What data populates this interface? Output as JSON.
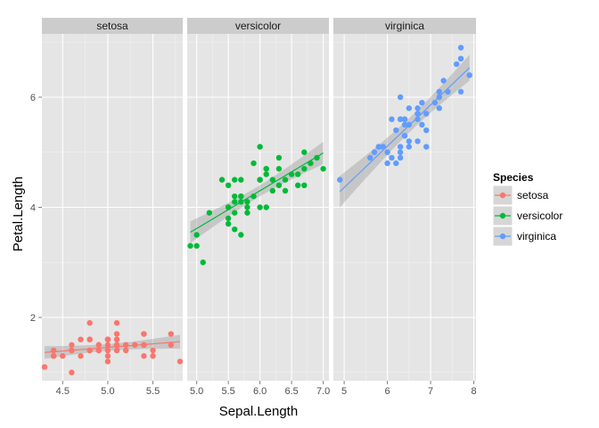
{
  "chart_data": {
    "type": "scatter",
    "xlabel": "Sepal.Length",
    "ylabel": "Petal.Length",
    "ylim": [
      0.85,
      7.15
    ],
    "y_ticks": [
      2,
      4,
      6
    ],
    "grid": true,
    "legend": {
      "title": "Species",
      "position": "right"
    },
    "panels": [
      {
        "name": "setosa",
        "color": "#F8766D",
        "xlim": [
          4.27,
          5.83
        ],
        "x_ticks": [
          4.5,
          5.0,
          5.5
        ],
        "x_tick_labels": [
          "4.5",
          "5.0",
          "5.5"
        ],
        "fit": {
          "intercept": 0.8,
          "slope": 0.131,
          "band": 0.12
        },
        "points": [
          [
            5.1,
            1.4
          ],
          [
            4.9,
            1.4
          ],
          [
            4.7,
            1.3
          ],
          [
            4.6,
            1.5
          ],
          [
            5.0,
            1.4
          ],
          [
            5.4,
            1.7
          ],
          [
            4.6,
            1.4
          ],
          [
            5.0,
            1.5
          ],
          [
            4.4,
            1.4
          ],
          [
            4.9,
            1.5
          ],
          [
            5.4,
            1.5
          ],
          [
            4.8,
            1.6
          ],
          [
            4.8,
            1.4
          ],
          [
            4.3,
            1.1
          ],
          [
            5.8,
            1.2
          ],
          [
            5.7,
            1.5
          ],
          [
            5.4,
            1.3
          ],
          [
            5.1,
            1.4
          ],
          [
            5.7,
            1.7
          ],
          [
            5.1,
            1.5
          ],
          [
            5.4,
            1.7
          ],
          [
            5.1,
            1.5
          ],
          [
            4.6,
            1.0
          ],
          [
            5.1,
            1.7
          ],
          [
            4.8,
            1.9
          ],
          [
            5.0,
            1.6
          ],
          [
            5.0,
            1.6
          ],
          [
            5.2,
            1.5
          ],
          [
            5.2,
            1.4
          ],
          [
            4.7,
            1.6
          ],
          [
            4.8,
            1.6
          ],
          [
            5.4,
            1.5
          ],
          [
            5.2,
            1.5
          ],
          [
            5.5,
            1.4
          ],
          [
            4.9,
            1.5
          ],
          [
            5.0,
            1.2
          ],
          [
            5.5,
            1.3
          ],
          [
            4.9,
            1.4
          ],
          [
            4.4,
            1.3
          ],
          [
            5.1,
            1.5
          ],
          [
            5.0,
            1.3
          ],
          [
            4.5,
            1.3
          ],
          [
            4.4,
            1.3
          ],
          [
            5.0,
            1.6
          ],
          [
            5.1,
            1.9
          ],
          [
            4.8,
            1.4
          ],
          [
            5.1,
            1.6
          ],
          [
            4.6,
            1.4
          ],
          [
            5.3,
            1.5
          ],
          [
            5.0,
            1.4
          ]
        ]
      },
      {
        "name": "versicolor",
        "color": "#00BA38",
        "xlim": [
          4.85,
          7.09
        ],
        "x_ticks": [
          5.0,
          5.5,
          6.0,
          6.5,
          7.0
        ],
        "x_tick_labels": [
          "5.0",
          "5.5",
          "6.0",
          "6.5",
          "7.0"
        ],
        "fit": {
          "intercept": 0.185,
          "slope": 0.686,
          "band": 0.2
        },
        "points": [
          [
            7.0,
            4.7
          ],
          [
            6.4,
            4.5
          ],
          [
            6.9,
            4.9
          ],
          [
            5.5,
            4.0
          ],
          [
            6.5,
            4.6
          ],
          [
            5.7,
            4.5
          ],
          [
            6.3,
            4.7
          ],
          [
            4.9,
            3.3
          ],
          [
            6.6,
            4.6
          ],
          [
            5.2,
            3.9
          ],
          [
            5.0,
            3.5
          ],
          [
            5.9,
            4.2
          ],
          [
            6.0,
            4.0
          ],
          [
            6.1,
            4.7
          ],
          [
            5.6,
            3.6
          ],
          [
            6.7,
            4.4
          ],
          [
            5.6,
            4.5
          ],
          [
            5.8,
            4.1
          ],
          [
            6.2,
            4.5
          ],
          [
            5.6,
            3.9
          ],
          [
            5.9,
            4.8
          ],
          [
            6.1,
            4.0
          ],
          [
            6.3,
            4.9
          ],
          [
            6.1,
            4.7
          ],
          [
            6.4,
            4.3
          ],
          [
            6.6,
            4.4
          ],
          [
            6.8,
            4.8
          ],
          [
            6.7,
            5.0
          ],
          [
            6.0,
            4.5
          ],
          [
            5.7,
            3.5
          ],
          [
            5.5,
            3.8
          ],
          [
            5.5,
            3.7
          ],
          [
            5.8,
            3.9
          ],
          [
            6.0,
            5.1
          ],
          [
            5.4,
            4.5
          ],
          [
            6.0,
            4.5
          ],
          [
            6.7,
            4.7
          ],
          [
            6.3,
            4.4
          ],
          [
            5.6,
            4.1
          ],
          [
            5.5,
            4.0
          ],
          [
            5.5,
            4.4
          ],
          [
            6.1,
            4.6
          ],
          [
            5.8,
            4.0
          ],
          [
            5.0,
            3.3
          ],
          [
            5.6,
            4.2
          ],
          [
            5.7,
            4.2
          ],
          [
            5.7,
            4.2
          ],
          [
            6.2,
            4.3
          ],
          [
            5.1,
            3.0
          ],
          [
            5.7,
            4.1
          ]
        ]
      },
      {
        "name": "virginica",
        "color": "#619CFF",
        "xlim": [
          4.75,
          8.05
        ],
        "x_ticks": [
          5,
          6,
          7,
          8
        ],
        "x_tick_labels": [
          "5",
          "6",
          "7",
          "8"
        ],
        "fit": {
          "intercept": 0.61,
          "slope": 0.75,
          "band": 0.26
        },
        "points": [
          [
            6.3,
            6.0
          ],
          [
            5.8,
            5.1
          ],
          [
            7.1,
            5.9
          ],
          [
            6.3,
            5.6
          ],
          [
            6.5,
            5.8
          ],
          [
            7.6,
            6.6
          ],
          [
            4.9,
            4.5
          ],
          [
            7.3,
            6.3
          ],
          [
            6.7,
            5.8
          ],
          [
            7.2,
            6.1
          ],
          [
            6.5,
            5.1
          ],
          [
            6.4,
            5.3
          ],
          [
            6.8,
            5.5
          ],
          [
            5.7,
            5.0
          ],
          [
            5.8,
            5.1
          ],
          [
            6.4,
            5.3
          ],
          [
            6.5,
            5.5
          ],
          [
            7.7,
            6.7
          ],
          [
            7.7,
            6.9
          ],
          [
            6.0,
            5.0
          ],
          [
            6.9,
            5.7
          ],
          [
            5.6,
            4.9
          ],
          [
            7.7,
            6.7
          ],
          [
            6.3,
            4.9
          ],
          [
            6.7,
            5.7
          ],
          [
            7.2,
            6.0
          ],
          [
            6.2,
            4.8
          ],
          [
            6.1,
            4.9
          ],
          [
            6.4,
            5.6
          ],
          [
            7.2,
            5.8
          ],
          [
            7.4,
            6.1
          ],
          [
            7.9,
            6.4
          ],
          [
            6.4,
            5.6
          ],
          [
            6.3,
            5.1
          ],
          [
            6.1,
            5.6
          ],
          [
            7.7,
            6.1
          ],
          [
            6.3,
            5.6
          ],
          [
            6.4,
            5.5
          ],
          [
            6.0,
            4.8
          ],
          [
            6.9,
            5.4
          ],
          [
            6.7,
            5.6
          ],
          [
            6.9,
            5.1
          ],
          [
            5.8,
            5.1
          ],
          [
            6.8,
            5.9
          ],
          [
            6.7,
            5.7
          ],
          [
            6.7,
            5.2
          ],
          [
            6.3,
            5.0
          ],
          [
            6.5,
            5.2
          ],
          [
            6.2,
            5.4
          ],
          [
            5.9,
            5.1
          ]
        ]
      }
    ]
  }
}
